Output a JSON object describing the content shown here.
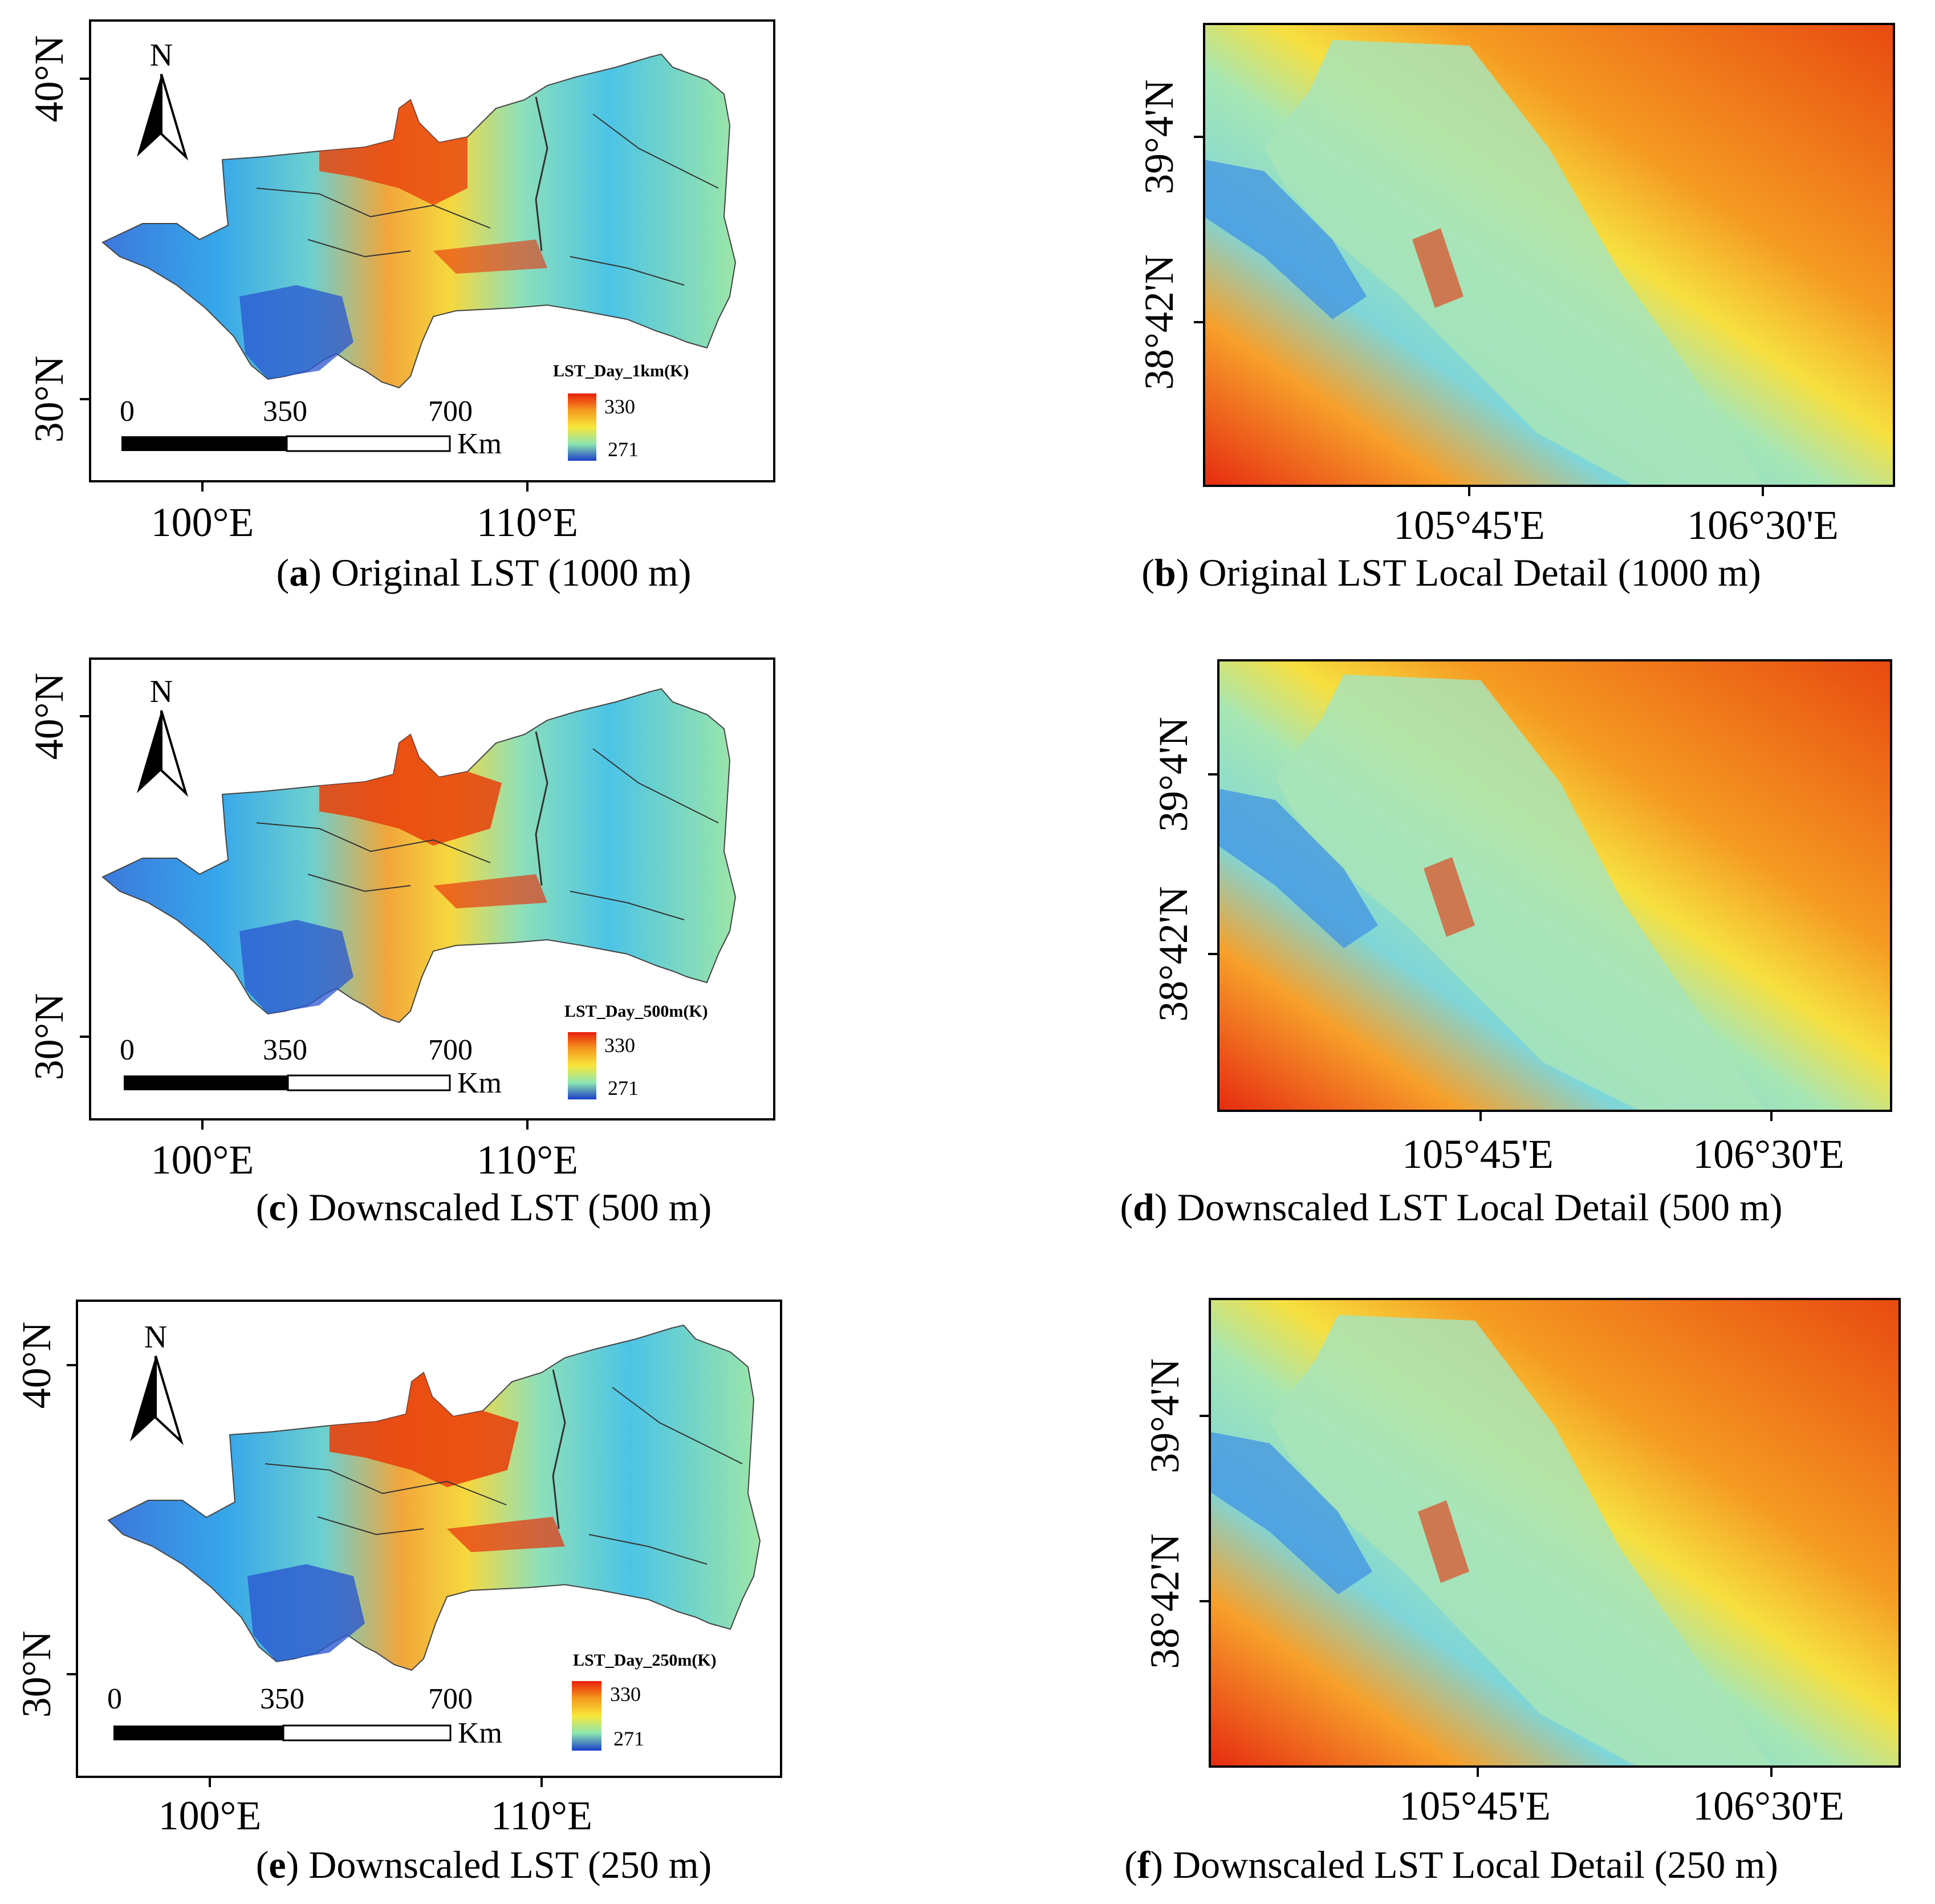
{
  "panels": [
    {
      "letter": "a",
      "caption": "Original LST (1000 m)",
      "legend_title": "LST_Day_1km(K)",
      "legend_max": "330",
      "legend_min": "271",
      "north": "N",
      "scale": [
        "0",
        "350",
        "700"
      ],
      "scale_unit": "Km",
      "lat_labels": [
        "40°N",
        "30°N"
      ],
      "lon_labels": [
        "100°E",
        "110°E"
      ]
    },
    {
      "letter": "b",
      "caption": "Original LST Local Detail (1000 m)",
      "lat_labels": [
        "39°4'N",
        "38°42'N"
      ],
      "lon_labels": [
        "105°45'E",
        "106°30'E"
      ]
    },
    {
      "letter": "c",
      "caption": "Downscaled LST (500 m)",
      "legend_title": "LST_Day_500m(K)",
      "legend_max": "330",
      "legend_min": "271",
      "north": "N",
      "scale": [
        "0",
        "350",
        "700"
      ],
      "scale_unit": "Km",
      "lat_labels": [
        "40°N",
        "30°N"
      ],
      "lon_labels": [
        "100°E",
        "110°E"
      ]
    },
    {
      "letter": "d",
      "caption": "Downscaled LST Local Detail (500 m)",
      "lat_labels": [
        "39°4'N",
        "38°42'N"
      ],
      "lon_labels": [
        "105°45'E",
        "106°30'E"
      ]
    },
    {
      "letter": "e",
      "caption": "Downscaled LST (250 m)",
      "legend_title": "LST_Day_250m(K)",
      "legend_max": "330",
      "legend_min": "271",
      "north": "N",
      "scale": [
        "0",
        "350",
        "700"
      ],
      "scale_unit": "Km",
      "lat_labels": [
        "40°N",
        "30°N"
      ],
      "lon_labels": [
        "100°E",
        "110°E"
      ]
    },
    {
      "letter": "f",
      "caption": "Downscaled LST Local Detail (250 m)",
      "lat_labels": [
        "39°4'N",
        "38°42'N"
      ],
      "lon_labels": [
        "105°45'E",
        "106°30'E"
      ]
    }
  ],
  "colors": {
    "hot": "#e8200c",
    "warm": "#f59a1e",
    "mid": "#f6e63a",
    "cool": "#8ee6b0",
    "cold": "#32a0ee",
    "coldest": "#1a3ec8"
  }
}
